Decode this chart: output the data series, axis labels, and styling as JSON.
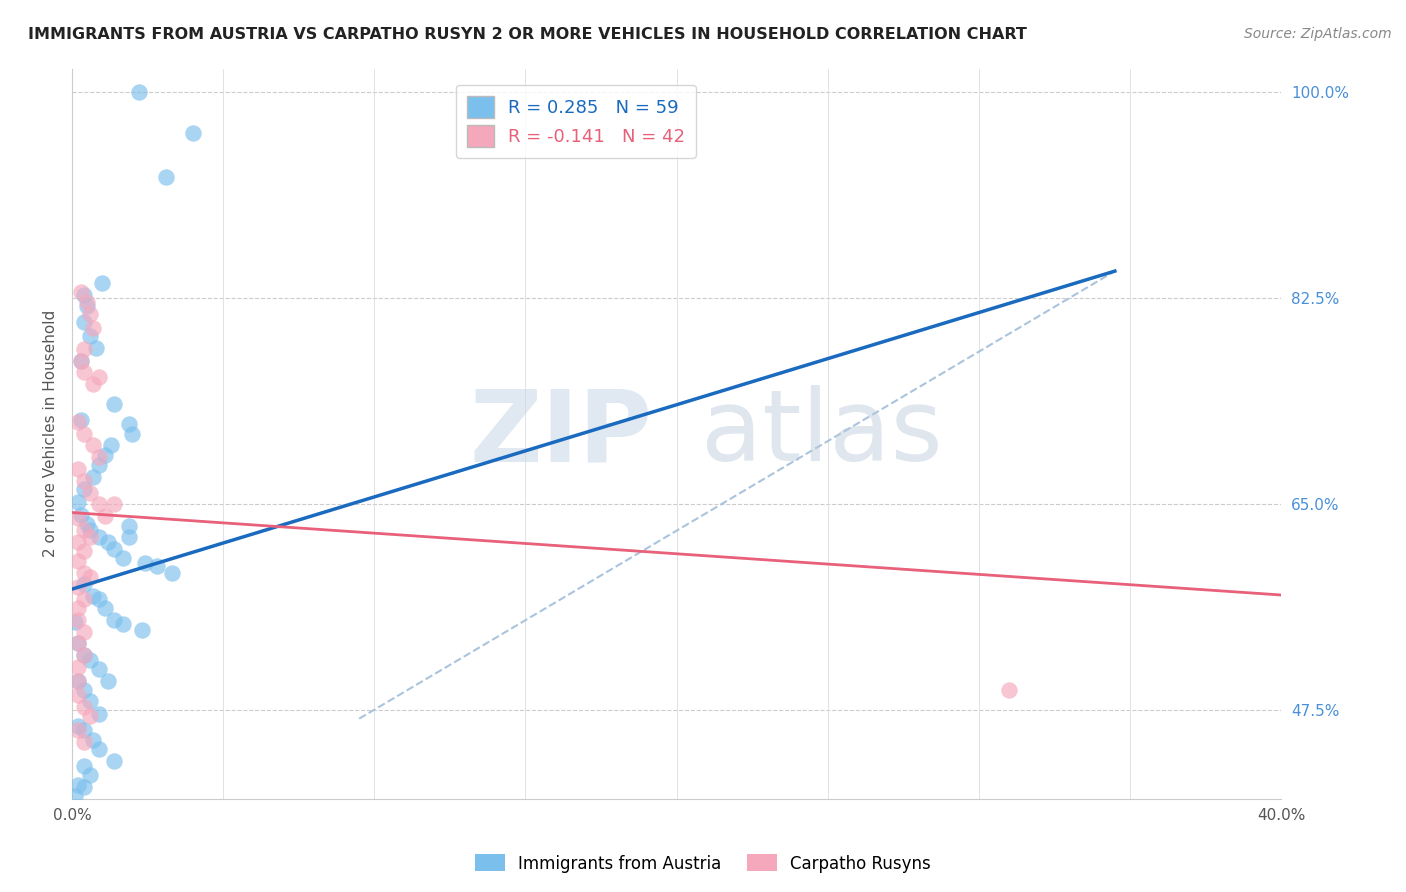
{
  "title": "IMMIGRANTS FROM AUSTRIA VS CARPATHO RUSYN 2 OR MORE VEHICLES IN HOUSEHOLD CORRELATION CHART",
  "source": "Source: ZipAtlas.com",
  "ylabel": "2 or more Vehicles in Household",
  "xlim": [
    0.0,
    0.4
  ],
  "ylim": [
    0.4,
    1.02
  ],
  "legend_R1": "R = 0.285",
  "legend_N1": "N = 59",
  "legend_R2": "R = -0.141",
  "legend_N2": "N = 42",
  "color_blue": "#7bbfed",
  "color_pink": "#f5a8bc",
  "color_blue_line": "#1a6bbf",
  "color_pink_line": "#e8607a",
  "color_dashed": "#aac4dd",
  "watermark_zip": "ZIP",
  "watermark_atlas": "atlas",
  "blue_scatter_x": [
    0.022,
    0.04,
    0.031,
    0.01,
    0.004,
    0.005,
    0.004,
    0.006,
    0.008,
    0.003,
    0.014,
    0.003,
    0.019,
    0.02,
    0.013,
    0.011,
    0.009,
    0.007,
    0.004,
    0.002,
    0.003,
    0.005,
    0.006,
    0.009,
    0.012,
    0.014,
    0.017,
    0.019,
    0.024,
    0.028,
    0.033,
    0.004,
    0.007,
    0.009,
    0.011,
    0.014,
    0.017,
    0.019,
    0.023,
    0.002,
    0.004,
    0.006,
    0.009,
    0.012,
    0.002,
    0.004,
    0.006,
    0.009,
    0.002,
    0.004,
    0.007,
    0.009,
    0.014,
    0.004,
    0.006,
    0.002,
    0.004,
    0.001,
    0.001
  ],
  "blue_scatter_y": [
    1.0,
    0.965,
    0.928,
    0.838,
    0.828,
    0.818,
    0.805,
    0.793,
    0.783,
    0.772,
    0.735,
    0.722,
    0.718,
    0.71,
    0.7,
    0.692,
    0.683,
    0.673,
    0.663,
    0.652,
    0.641,
    0.633,
    0.628,
    0.622,
    0.618,
    0.612,
    0.604,
    0.632,
    0.6,
    0.598,
    0.592,
    0.582,
    0.572,
    0.57,
    0.562,
    0.552,
    0.548,
    0.622,
    0.543,
    0.532,
    0.522,
    0.518,
    0.51,
    0.5,
    0.5,
    0.492,
    0.483,
    0.472,
    0.462,
    0.458,
    0.45,
    0.442,
    0.432,
    0.428,
    0.42,
    0.412,
    0.41,
    0.402,
    0.55
  ],
  "pink_scatter_x": [
    0.003,
    0.005,
    0.006,
    0.007,
    0.004,
    0.003,
    0.004,
    0.007,
    0.009,
    0.002,
    0.004,
    0.007,
    0.009,
    0.002,
    0.004,
    0.006,
    0.009,
    0.011,
    0.002,
    0.004,
    0.006,
    0.002,
    0.004,
    0.002,
    0.004,
    0.006,
    0.002,
    0.004,
    0.002,
    0.014,
    0.002,
    0.004,
    0.002,
    0.004,
    0.002,
    0.002,
    0.31,
    0.002,
    0.004,
    0.006,
    0.002,
    0.004
  ],
  "pink_scatter_y": [
    0.83,
    0.822,
    0.812,
    0.8,
    0.782,
    0.772,
    0.762,
    0.752,
    0.758,
    0.72,
    0.71,
    0.7,
    0.69,
    0.68,
    0.67,
    0.66,
    0.65,
    0.64,
    0.638,
    0.628,
    0.622,
    0.618,
    0.61,
    0.602,
    0.592,
    0.588,
    0.58,
    0.57,
    0.562,
    0.65,
    0.552,
    0.542,
    0.532,
    0.522,
    0.512,
    0.5,
    0.492,
    0.488,
    0.478,
    0.47,
    0.458,
    0.448
  ],
  "blue_line_x": [
    0.0,
    0.345
  ],
  "blue_line_y": [
    0.578,
    0.848
  ],
  "pink_line_x": [
    0.0,
    0.4
  ],
  "pink_line_y": [
    0.643,
    0.573
  ],
  "dashed_line_x": [
    0.095,
    0.345
  ],
  "dashed_line_y": [
    0.468,
    0.848
  ],
  "ytick_positions": [
    0.475,
    0.65,
    0.825,
    1.0
  ],
  "ytick_labels": [
    "47.5%",
    "65.0%",
    "82.5%",
    "100.0%"
  ]
}
